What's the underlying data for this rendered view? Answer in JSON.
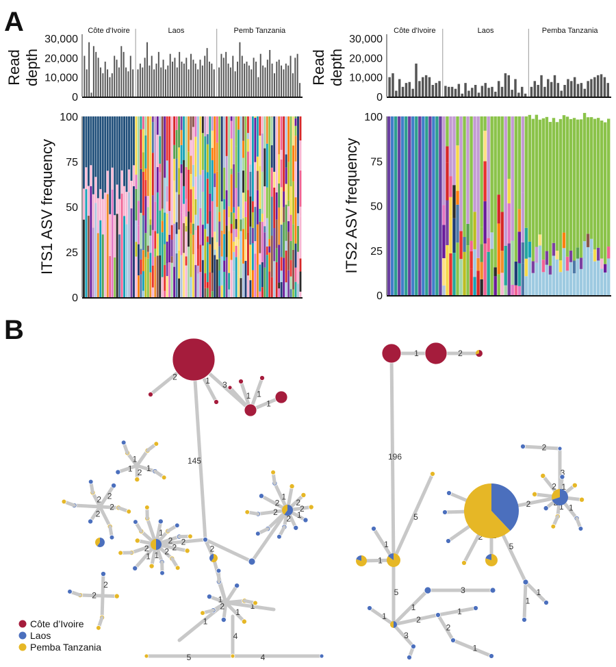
{
  "panels": {
    "a": "A",
    "b": "B"
  },
  "colors": {
    "cote": "#a51c3c",
    "laos": "#4b6fbd",
    "pemba": "#e6b726",
    "bar": "#555555",
    "edge": "#c8c8c8"
  },
  "chart_data": [
    {
      "type": "bar",
      "id": "its1-depth",
      "ylabel": "Read depth",
      "ylim": [
        0,
        30000
      ],
      "yticks": [
        "30,000",
        "20,000",
        "10,000",
        "0"
      ],
      "groups": [
        {
          "name": "Côte d'Ivoire",
          "values": [
            21000,
            14000,
            28000,
            2000,
            26000,
            23000,
            20000,
            15000,
            12000,
            18000,
            14000,
            10000,
            12000,
            21000,
            19000,
            15000,
            26000,
            23000,
            15000,
            13000,
            21000,
            14000
          ]
        },
        {
          "name": "Laos",
          "values": [
            14000,
            17000,
            15000,
            20000,
            28000,
            16000,
            21000,
            14000,
            17000,
            23000,
            15000,
            19000,
            14000,
            16000,
            22000,
            18000,
            20000,
            15000,
            23000,
            18000,
            17000,
            20000,
            14000,
            22000,
            19000,
            17000,
            14000,
            19000,
            16000,
            21000,
            25000,
            18000,
            17000,
            14000
          ]
        },
        {
          "name": "Pemb Tanzania",
          "values": [
            15000,
            22000,
            20000,
            23000,
            17000,
            15000,
            21000,
            13000,
            18000,
            28000,
            21000,
            17000,
            18000,
            16000,
            14000,
            20000,
            18000,
            10000,
            22000,
            16000,
            15000,
            19000,
            24000,
            17000,
            12000,
            18000,
            19000,
            16000,
            14000,
            17000,
            16000,
            21000,
            12000,
            20000,
            22000,
            7000
          ]
        }
      ]
    },
    {
      "type": "bar",
      "id": "its2-depth",
      "ylabel": "Read depth",
      "ylim": [
        0,
        30000
      ],
      "yticks": [
        "30,000",
        "20,000",
        "10,000",
        "0"
      ],
      "groups": [
        {
          "name": "Côte d'Ivoire",
          "values": [
            10000,
            12000,
            3000,
            9000,
            5000,
            7000,
            7500,
            4000,
            17000,
            8000,
            10000,
            11000,
            10000,
            6000,
            7000,
            8000
          ]
        },
        {
          "name": "Laos",
          "values": [
            5500,
            5000,
            5000,
            4000,
            6500,
            1500,
            7000,
            3000,
            4500,
            6000,
            2000,
            5500,
            7000,
            4500,
            5000,
            2500,
            8000,
            5000,
            12000,
            11000,
            3500,
            9000,
            2000,
            5000,
            1500
          ]
        },
        {
          "name": "Pemba Tanzania",
          "values": [
            5000,
            8000,
            6000,
            11000,
            5000,
            9000,
            7500,
            11000,
            7000,
            3000,
            6000,
            9000,
            8000,
            10000,
            6500,
            7000,
            4000,
            8000,
            9000,
            10000,
            11000,
            11500,
            10000,
            7000
          ]
        }
      ]
    },
    {
      "type": "bar",
      "stacked": true,
      "id": "its1-asv",
      "ylabel": "ITS1 ASV frequency",
      "ylim": [
        0,
        100
      ],
      "yticks": [
        "100",
        "75",
        "50",
        "25",
        "0"
      ],
      "samples": 92
    },
    {
      "type": "bar",
      "stacked": true,
      "id": "its2-asv",
      "ylabel": "ITS2 ASV frequency",
      "ylim": [
        0,
        100
      ],
      "yticks": [
        "100",
        "75",
        "50",
        "25",
        "0"
      ],
      "samples": 65
    }
  ],
  "network_labels": {
    "its1_main": "145",
    "its2_main": "196"
  },
  "legend": [
    {
      "label": "Côte d’Ivoire",
      "color": "#a51c3c"
    },
    {
      "label": "Laos",
      "color": "#4b6fbd"
    },
    {
      "label": "Pemba Tanzania",
      "color": "#e6b726"
    }
  ]
}
